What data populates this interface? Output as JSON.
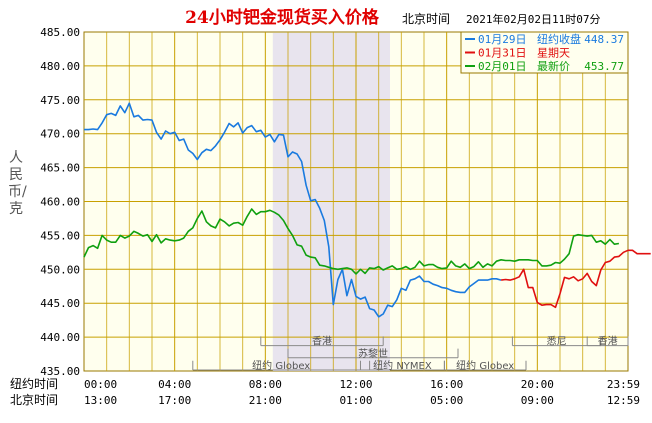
{
  "chart_data": {
    "type": "line",
    "title": "24小时钯金现货买入价格",
    "ylabel": "人民币/克",
    "ylim": [
      435,
      485
    ],
    "yticks": [
      "485.00",
      "480.00",
      "475.00",
      "470.00",
      "465.00",
      "460.00",
      "455.00",
      "450.00",
      "445.00",
      "440.00",
      "435.00"
    ],
    "header": {
      "tz_label": "北京时间",
      "datetime": "2021年02月02日11时07分"
    },
    "legend": {
      "position": "top-right",
      "rows": [
        {
          "date": "01月29日",
          "label": "纽约收盘",
          "value": "448.37",
          "color": "#1a7adf"
        },
        {
          "date": "01月31日",
          "label": "星期天",
          "value": "",
          "color": "#e01010"
        },
        {
          "date": "02月01日",
          "label": "最新价",
          "value": "453.77",
          "color": "#10a010"
        }
      ]
    },
    "x_axis": {
      "rows": [
        {
          "label": "纽约时间",
          "ticks": [
            "00:00",
            "04:00",
            "08:00",
            "12:00",
            "16:00",
            "20:00",
            "23:59"
          ]
        },
        {
          "label": "北京时间",
          "ticks": [
            "13:00",
            "17:00",
            "21:00",
            "01:00",
            "05:00",
            "09:00",
            "12:59"
          ]
        }
      ]
    },
    "markets": [
      {
        "name": "香港",
        "start": 13.0,
        "end": 22.0
      },
      {
        "name": "苏黎世",
        "start": 15.0,
        "end": 27.5
      },
      {
        "name": "纽约 Globex",
        "start": 8.0,
        "end": 21.0
      },
      {
        "name": "纽约 NYMEX",
        "start": 20.33,
        "end": 26.5
      },
      {
        "name": "纽约 Globex",
        "start": 26.5,
        "end": 32.5
      },
      {
        "name": "悉尼",
        "start": 31.5,
        "end": 38.0
      },
      {
        "name": "香港",
        "start": 37.0,
        "end": 40.0
      }
    ],
    "nymex_session_hours": [
      8.33,
      13.5
    ],
    "series": [
      {
        "name": "01月29日",
        "color": "#1a7adf",
        "points": [
          [
            0.0,
            470.6
          ],
          [
            0.2,
            470.6
          ],
          [
            0.4,
            470.7
          ],
          [
            0.6,
            470.6
          ],
          [
            0.8,
            471.6
          ],
          [
            1.0,
            472.8
          ],
          [
            1.2,
            473.0
          ],
          [
            1.4,
            472.7
          ],
          [
            1.6,
            474.1
          ],
          [
            1.8,
            473.1
          ],
          [
            2.0,
            474.5
          ],
          [
            2.2,
            472.5
          ],
          [
            2.4,
            472.7
          ],
          [
            2.6,
            472.0
          ],
          [
            2.8,
            472.1
          ],
          [
            3.0,
            472.0
          ],
          [
            3.2,
            470.2
          ],
          [
            3.4,
            469.2
          ],
          [
            3.6,
            470.4
          ],
          [
            3.8,
            470.0
          ],
          [
            4.0,
            470.2
          ],
          [
            4.2,
            469.0
          ],
          [
            4.4,
            469.2
          ],
          [
            4.6,
            467.6
          ],
          [
            4.8,
            467.1
          ],
          [
            5.0,
            466.2
          ],
          [
            5.2,
            467.2
          ],
          [
            5.4,
            467.7
          ],
          [
            5.6,
            467.5
          ],
          [
            5.8,
            468.2
          ],
          [
            6.0,
            469.1
          ],
          [
            6.2,
            470.2
          ],
          [
            6.4,
            471.5
          ],
          [
            6.6,
            471.0
          ],
          [
            6.8,
            471.6
          ],
          [
            7.0,
            470.1
          ],
          [
            7.2,
            470.9
          ],
          [
            7.4,
            471.2
          ],
          [
            7.6,
            470.3
          ],
          [
            7.8,
            470.5
          ],
          [
            8.0,
            469.5
          ],
          [
            8.2,
            469.9
          ],
          [
            8.4,
            468.8
          ],
          [
            8.6,
            469.9
          ],
          [
            8.8,
            469.8
          ],
          [
            9.0,
            466.6
          ],
          [
            9.2,
            467.3
          ],
          [
            9.4,
            467.0
          ],
          [
            9.6,
            465.9
          ],
          [
            9.8,
            462.4
          ],
          [
            10.0,
            460.1
          ],
          [
            10.2,
            460.3
          ],
          [
            10.4,
            459.0
          ],
          [
            10.6,
            457.2
          ],
          [
            10.8,
            453.3
          ],
          [
            11.0,
            444.8
          ],
          [
            11.2,
            448.5
          ],
          [
            11.4,
            450.0
          ],
          [
            11.6,
            446.1
          ],
          [
            11.8,
            448.5
          ],
          [
            12.0,
            446.0
          ],
          [
            12.2,
            445.6
          ],
          [
            12.4,
            445.9
          ],
          [
            12.6,
            444.2
          ],
          [
            12.8,
            444.0
          ],
          [
            13.0,
            443.0
          ],
          [
            13.2,
            443.4
          ],
          [
            13.4,
            444.7
          ],
          [
            13.6,
            444.5
          ],
          [
            13.8,
            445.5
          ],
          [
            14.0,
            447.2
          ],
          [
            14.2,
            446.9
          ],
          [
            14.4,
            448.4
          ],
          [
            14.6,
            448.6
          ],
          [
            14.8,
            449.0
          ],
          [
            15.0,
            448.2
          ],
          [
            15.2,
            448.2
          ],
          [
            15.4,
            447.8
          ],
          [
            15.6,
            447.6
          ],
          [
            15.8,
            447.3
          ],
          [
            16.0,
            447.2
          ],
          [
            16.2,
            446.9
          ],
          [
            16.4,
            446.7
          ],
          [
            16.6,
            446.6
          ],
          [
            16.8,
            446.6
          ],
          [
            17.0,
            447.4
          ],
          [
            17.2,
            447.9
          ],
          [
            17.4,
            448.4
          ],
          [
            17.6,
            448.4
          ],
          [
            17.8,
            448.4
          ],
          [
            18.0,
            448.6
          ],
          [
            18.2,
            448.6
          ],
          [
            18.4,
            448.4
          ]
        ]
      },
      {
        "name": "01月31日",
        "color": "#e01010",
        "points": [
          [
            18.4,
            448.4
          ],
          [
            18.6,
            448.5
          ],
          [
            18.8,
            448.4
          ],
          [
            19.0,
            448.6
          ],
          [
            19.2,
            448.9
          ],
          [
            19.4,
            450.0
          ],
          [
            19.6,
            447.3
          ],
          [
            19.8,
            447.3
          ],
          [
            20.0,
            445.1
          ],
          [
            20.2,
            444.7
          ],
          [
            20.4,
            444.8
          ],
          [
            20.6,
            444.8
          ],
          [
            20.8,
            444.4
          ],
          [
            21.0,
            446.4
          ],
          [
            21.2,
            448.8
          ],
          [
            21.4,
            448.6
          ],
          [
            21.6,
            448.9
          ],
          [
            21.8,
            448.3
          ],
          [
            22.0,
            448.6
          ],
          [
            22.2,
            449.4
          ],
          [
            22.4,
            448.2
          ],
          [
            22.6,
            447.6
          ],
          [
            22.8,
            449.9
          ],
          [
            23.0,
            451.0
          ],
          [
            23.2,
            451.2
          ],
          [
            23.4,
            451.8
          ],
          [
            23.6,
            451.9
          ],
          [
            23.8,
            452.5
          ],
          [
            24.0,
            452.8
          ],
          [
            24.2,
            452.8
          ],
          [
            24.4,
            452.3
          ],
          [
            24.6,
            452.3
          ],
          [
            24.8,
            452.3
          ],
          [
            25.0,
            452.3
          ]
        ]
      },
      {
        "name": "02月01日",
        "color": "#10a010",
        "points": [
          [
            0.0,
            451.8
          ],
          [
            0.2,
            453.2
          ],
          [
            0.4,
            453.5
          ],
          [
            0.6,
            453.1
          ],
          [
            0.8,
            455.0
          ],
          [
            1.0,
            454.3
          ],
          [
            1.2,
            454.0
          ],
          [
            1.4,
            454.0
          ],
          [
            1.6,
            455.0
          ],
          [
            1.8,
            454.6
          ],
          [
            2.0,
            454.9
          ],
          [
            2.2,
            455.6
          ],
          [
            2.4,
            455.3
          ],
          [
            2.6,
            454.9
          ],
          [
            2.8,
            455.1
          ],
          [
            3.0,
            454.1
          ],
          [
            3.2,
            455.1
          ],
          [
            3.4,
            453.9
          ],
          [
            3.6,
            454.5
          ],
          [
            3.8,
            454.3
          ],
          [
            4.0,
            454.2
          ],
          [
            4.2,
            454.3
          ],
          [
            4.4,
            454.6
          ],
          [
            4.6,
            455.6
          ],
          [
            4.8,
            456.1
          ],
          [
            5.0,
            457.5
          ],
          [
            5.2,
            458.6
          ],
          [
            5.4,
            457.0
          ],
          [
            5.6,
            456.4
          ],
          [
            5.8,
            456.1
          ],
          [
            6.0,
            457.4
          ],
          [
            6.2,
            457.0
          ],
          [
            6.4,
            456.4
          ],
          [
            6.6,
            456.8
          ],
          [
            6.8,
            456.9
          ],
          [
            7.0,
            456.5
          ],
          [
            7.2,
            457.8
          ],
          [
            7.4,
            458.9
          ],
          [
            7.6,
            458.1
          ],
          [
            7.8,
            458.5
          ],
          [
            8.0,
            458.5
          ],
          [
            8.2,
            458.7
          ],
          [
            8.4,
            458.4
          ],
          [
            8.6,
            458.0
          ],
          [
            8.8,
            457.2
          ],
          [
            9.0,
            456.0
          ],
          [
            9.2,
            455.0
          ],
          [
            9.4,
            453.6
          ],
          [
            9.6,
            453.4
          ],
          [
            9.8,
            452.1
          ],
          [
            10.0,
            451.8
          ],
          [
            10.2,
            451.7
          ],
          [
            10.4,
            450.6
          ],
          [
            10.6,
            450.5
          ],
          [
            10.8,
            450.3
          ],
          [
            11.0,
            450.1
          ],
          [
            11.2,
            450.0
          ],
          [
            11.4,
            450.1
          ],
          [
            11.6,
            450.2
          ],
          [
            11.8,
            450.0
          ],
          [
            12.0,
            449.3
          ],
          [
            12.2,
            450.0
          ],
          [
            12.4,
            449.4
          ],
          [
            12.6,
            450.2
          ],
          [
            12.8,
            450.1
          ],
          [
            13.0,
            450.4
          ],
          [
            13.2,
            449.9
          ],
          [
            13.4,
            450.2
          ],
          [
            13.6,
            450.5
          ],
          [
            13.8,
            450.0
          ],
          [
            14.0,
            450.1
          ],
          [
            14.2,
            450.4
          ],
          [
            14.4,
            450.0
          ],
          [
            14.6,
            450.3
          ],
          [
            14.8,
            451.2
          ],
          [
            15.0,
            450.5
          ],
          [
            15.2,
            450.7
          ],
          [
            15.4,
            450.7
          ],
          [
            15.6,
            450.3
          ],
          [
            15.8,
            450.1
          ],
          [
            16.0,
            450.2
          ],
          [
            16.2,
            451.2
          ],
          [
            16.4,
            450.5
          ],
          [
            16.6,
            450.3
          ],
          [
            16.8,
            450.8
          ],
          [
            17.0,
            450.1
          ],
          [
            17.2,
            450.4
          ],
          [
            17.4,
            451.1
          ],
          [
            17.6,
            450.3
          ],
          [
            17.8,
            450.8
          ],
          [
            18.0,
            450.5
          ],
          [
            18.2,
            451.2
          ],
          [
            18.4,
            451.4
          ],
          [
            18.6,
            451.3
          ],
          [
            18.8,
            451.3
          ],
          [
            19.0,
            451.2
          ],
          [
            19.2,
            451.4
          ],
          [
            19.4,
            451.4
          ],
          [
            19.6,
            451.4
          ],
          [
            19.8,
            451.3
          ],
          [
            20.0,
            451.3
          ],
          [
            20.2,
            450.5
          ],
          [
            20.4,
            450.5
          ],
          [
            20.6,
            450.6
          ],
          [
            20.8,
            451.0
          ],
          [
            21.0,
            450.9
          ],
          [
            21.2,
            451.5
          ],
          [
            21.4,
            452.3
          ],
          [
            21.6,
            454.9
          ],
          [
            21.8,
            455.1
          ],
          [
            22.0,
            455.0
          ],
          [
            22.2,
            454.9
          ],
          [
            22.4,
            455.0
          ],
          [
            22.6,
            454.0
          ],
          [
            22.8,
            454.2
          ],
          [
            23.0,
            453.7
          ],
          [
            23.2,
            454.4
          ],
          [
            23.4,
            453.7
          ],
          [
            23.6,
            453.8
          ]
        ]
      }
    ]
  }
}
